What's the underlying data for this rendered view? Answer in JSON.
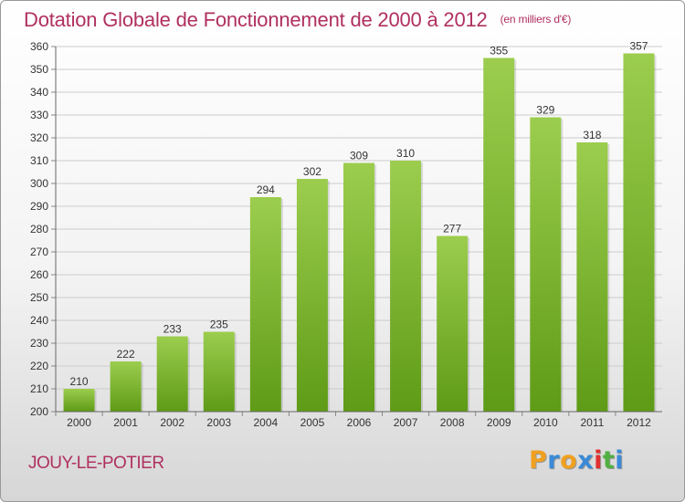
{
  "title": "Dotation Globale de Fonctionnement de 2000 à 2012",
  "unit_label": "(en milliers d'€)",
  "commune": "JOUY-LE-POTIER",
  "logo": {
    "letters": [
      "P",
      "r",
      "o",
      "x",
      "i",
      "t",
      "i"
    ],
    "colors": [
      "#f0a020",
      "#3a8ad8",
      "#f0a020",
      "#3a8ad8",
      "#e03030",
      "#50b040",
      "#3a8ad8"
    ]
  },
  "colors": {
    "bar_top": "#9ccd4e",
    "bar_bottom": "#5e9b16",
    "title": "#b03060",
    "grid": "#cccccc"
  },
  "chart_data": {
    "type": "bar",
    "title": "Dotation Globale de Fonctionnement de 2000 à 2012",
    "categories": [
      "2000",
      "2001",
      "2002",
      "2003",
      "2004",
      "2005",
      "2006",
      "2007",
      "2008",
      "2009",
      "2010",
      "2011",
      "2012"
    ],
    "values": [
      210,
      222,
      233,
      235,
      294,
      302,
      309,
      310,
      277,
      355,
      329,
      318,
      357
    ],
    "xlabel": "",
    "ylabel": "",
    "ylim": [
      200,
      360
    ],
    "yticks": [
      200,
      210,
      220,
      230,
      240,
      250,
      260,
      270,
      280,
      290,
      300,
      310,
      320,
      330,
      340,
      350,
      360
    ],
    "grid": true,
    "data_labels": true
  }
}
